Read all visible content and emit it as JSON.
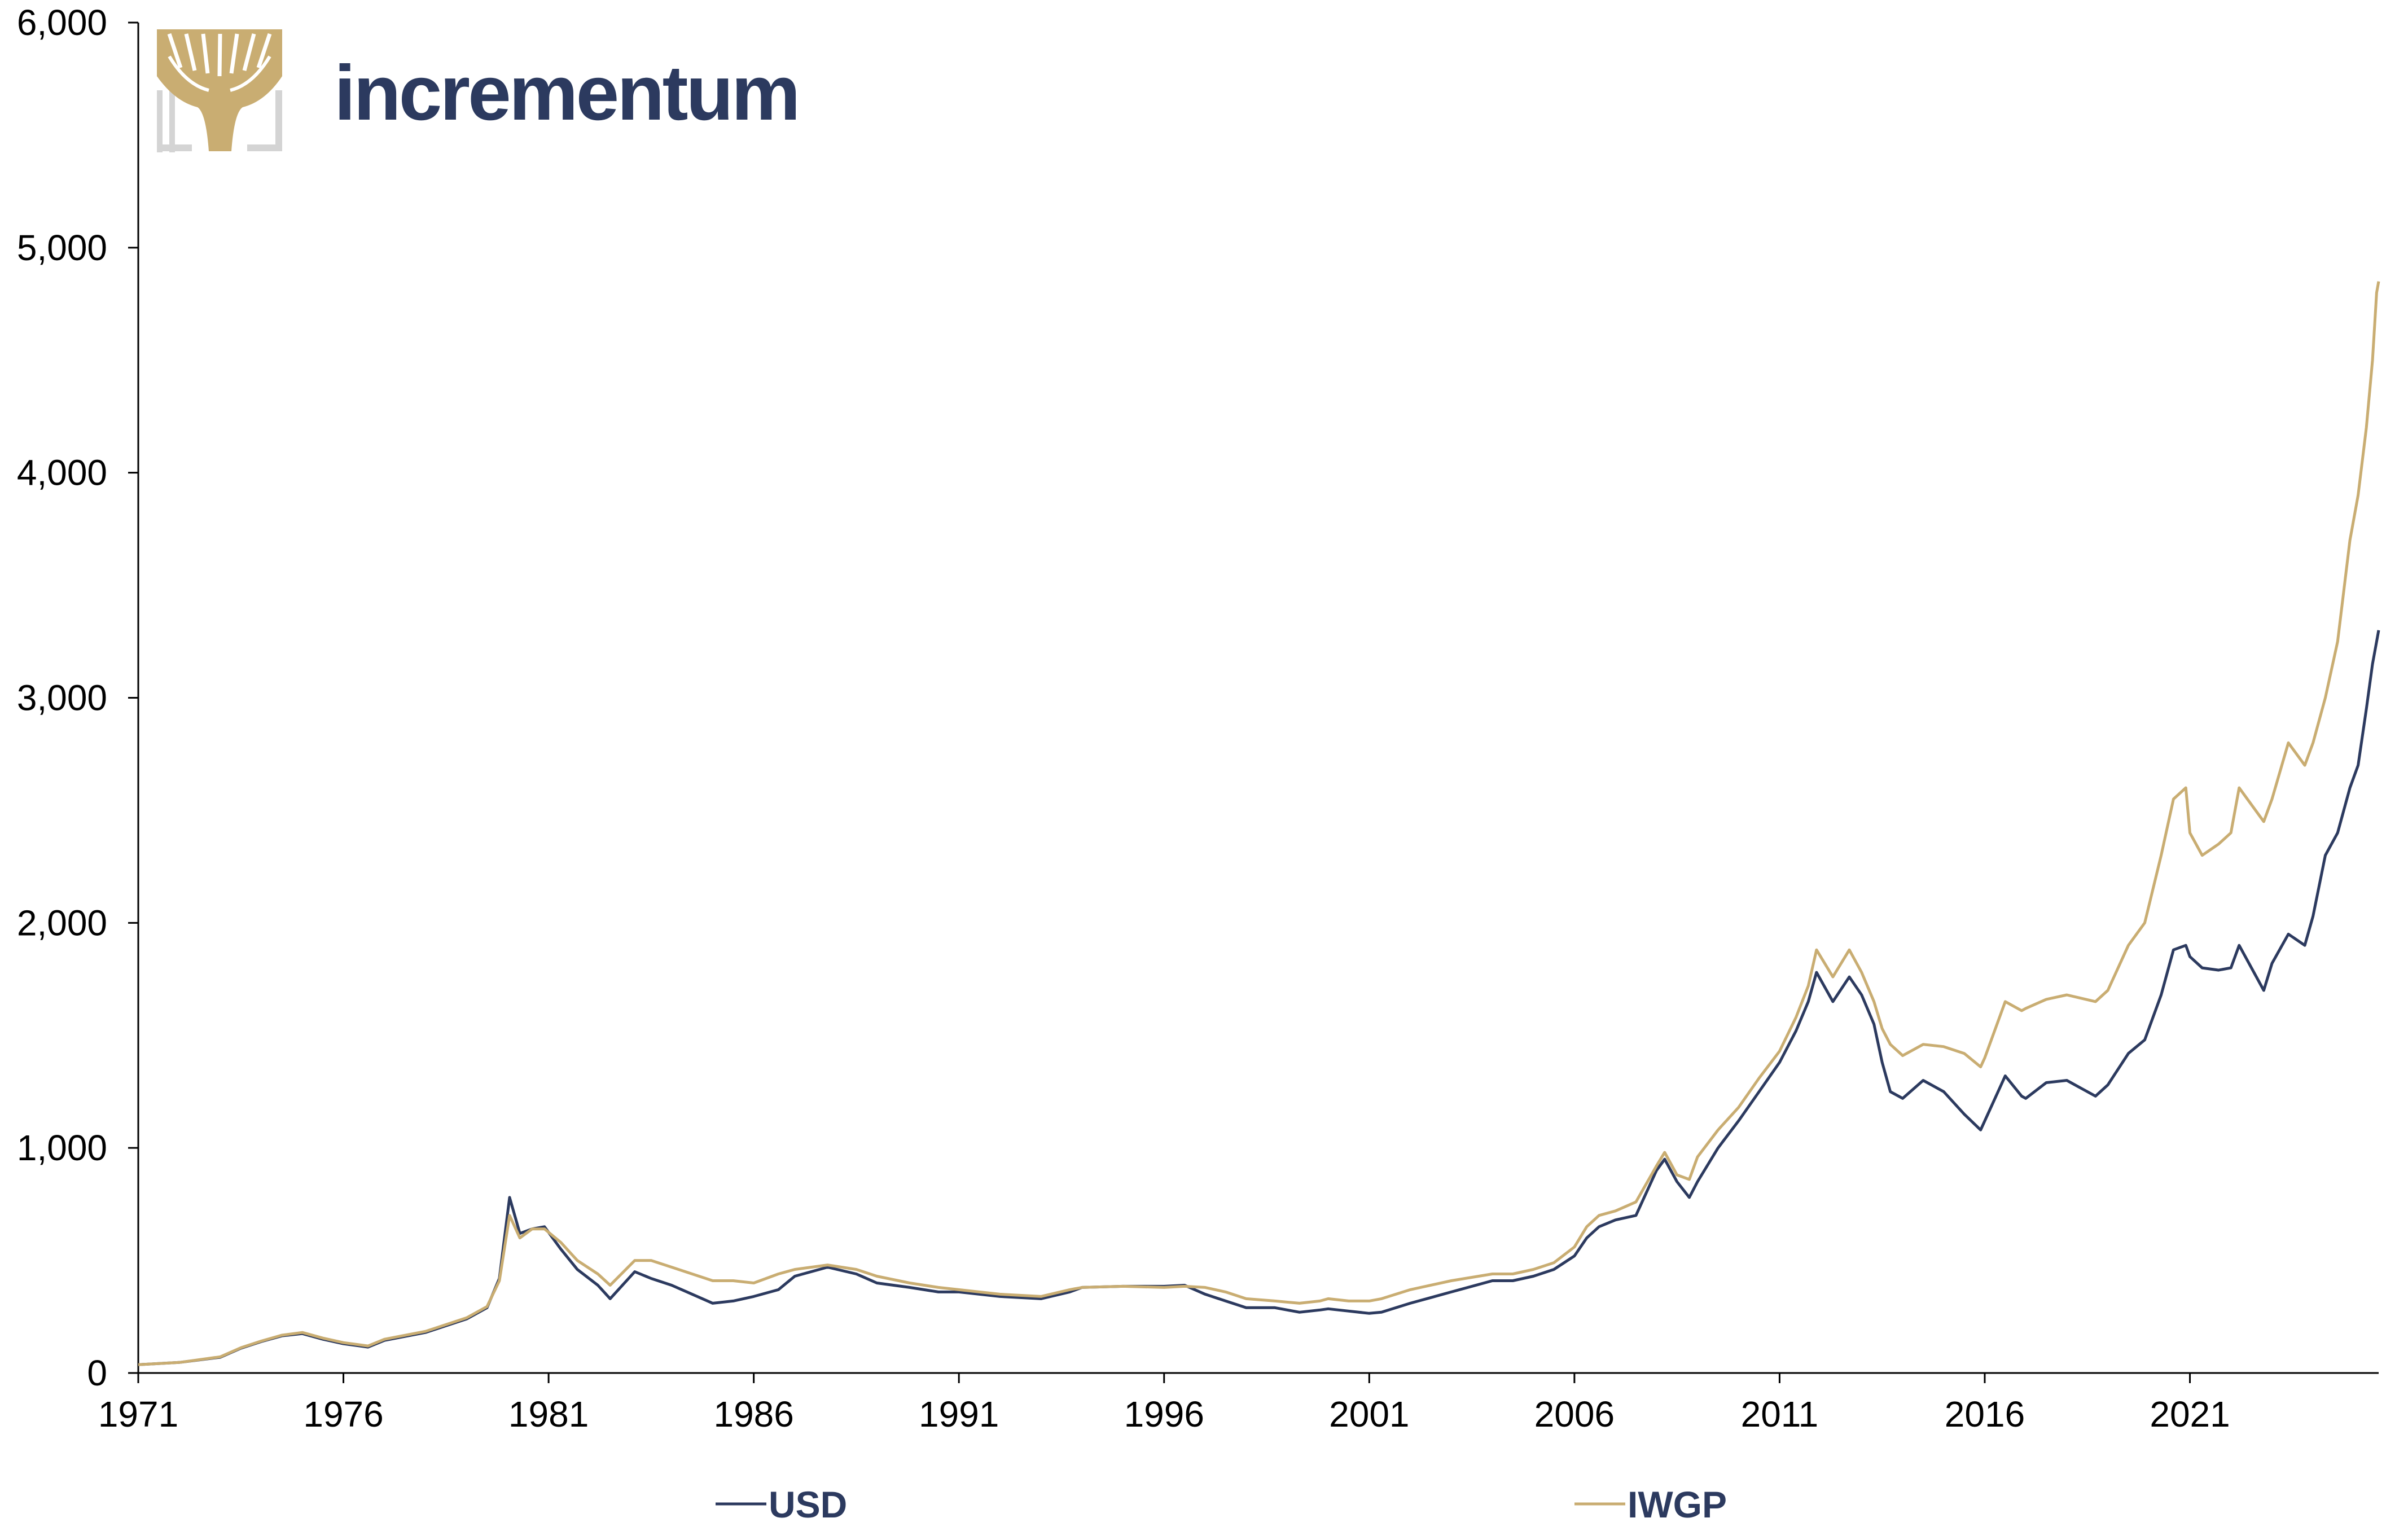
{
  "brand": {
    "name": "incrementum"
  },
  "colors": {
    "usd": "#2c3a5f",
    "iwgp": "#c9ad72",
    "axis": "#000000",
    "logo_gold": "#c9ad72",
    "logo_grey": "#d4d4d4"
  },
  "chart_data": {
    "type": "line",
    "title": "",
    "xlabel": "",
    "ylabel": "",
    "xlim": [
      1971,
      2025.6
    ],
    "ylim": [
      0,
      6000
    ],
    "grid": false,
    "legend_position": "bottom",
    "x_ticks": [
      "1971",
      "1976",
      "1981",
      "1986",
      "1991",
      "1996",
      "2001",
      "2006",
      "2011",
      "2016",
      "2021"
    ],
    "y_ticks": [
      "0",
      "1,000",
      "2,000",
      "3,000",
      "4,000",
      "5,000",
      "6,000"
    ],
    "x_tick_values": [
      1971,
      1976,
      1981,
      1986,
      1991,
      1996,
      2001,
      2006,
      2011,
      2016,
      2021
    ],
    "y_tick_values": [
      0,
      1000,
      2000,
      3000,
      4000,
      5000,
      6000
    ],
    "series": [
      {
        "name": "USD",
        "x": [
          1971.0,
          1972.0,
          1973.0,
          1973.5,
          1974.0,
          1974.5,
          1975.0,
          1975.5,
          1976.0,
          1976.6,
          1977.0,
          1978.0,
          1978.5,
          1979.0,
          1979.5,
          1979.8,
          1980.05,
          1980.3,
          1980.6,
          1980.9,
          1981.3,
          1981.7,
          1982.2,
          1982.5,
          1983.1,
          1983.5,
          1984.0,
          1985.0,
          1985.5,
          1986.0,
          1986.6,
          1987.0,
          1987.8,
          1988.5,
          1989.0,
          1989.8,
          1990.5,
          1991.0,
          1992.0,
          1993.0,
          1993.7,
          1994.0,
          1995.0,
          1996.0,
          1996.5,
          1997.0,
          1997.5,
          1998.0,
          1998.7,
          1999.3,
          1999.8,
          2000.0,
          2000.5,
          2001.0,
          2001.3,
          2002.0,
          2003.0,
          2004.0,
          2004.5,
          2005.0,
          2005.5,
          2006.0,
          2006.3,
          2006.6,
          2007.0,
          2007.5,
          2008.0,
          2008.2,
          2008.5,
          2008.8,
          2009.0,
          2009.5,
          2010.0,
          2010.5,
          2011.0,
          2011.4,
          2011.7,
          2011.9,
          2012.3,
          2012.7,
          2013.0,
          2013.3,
          2013.5,
          2013.7,
          2014.0,
          2014.5,
          2015.0,
          2015.5,
          2015.9,
          2016.0,
          2016.5,
          2016.9,
          2017.0,
          2017.5,
          2018.0,
          2018.7,
          2019.0,
          2019.5,
          2019.9,
          2020.3,
          2020.6,
          2020.9,
          2021.0,
          2021.3,
          2021.7,
          2022.0,
          2022.2,
          2022.8,
          2023.0,
          2023.4,
          2023.8,
          2024.0,
          2024.3,
          2024.6,
          2024.9,
          2025.1,
          2025.3,
          2025.45,
          2025.55,
          2025.6
        ],
        "values": [
          37,
          47,
          70,
          110,
          140,
          165,
          175,
          150,
          130,
          115,
          145,
          180,
          210,
          240,
          290,
          420,
          780,
          620,
          640,
          650,
          550,
          460,
          390,
          330,
          450,
          420,
          390,
          310,
          320,
          340,
          370,
          430,
          470,
          440,
          400,
          380,
          360,
          360,
          340,
          330,
          360,
          380,
          385,
          385,
          390,
          350,
          320,
          290,
          290,
          270,
          280,
          285,
          275,
          265,
          270,
          310,
          360,
          410,
          410,
          430,
          460,
          520,
          600,
          650,
          680,
          700,
          900,
          950,
          850,
          780,
          850,
          1000,
          1120,
          1250,
          1380,
          1520,
          1650,
          1780,
          1650,
          1760,
          1680,
          1550,
          1380,
          1250,
          1220,
          1300,
          1250,
          1150,
          1080,
          1120,
          1320,
          1230,
          1220,
          1290,
          1300,
          1230,
          1280,
          1420,
          1480,
          1680,
          1880,
          1900,
          1850,
          1800,
          1790,
          1800,
          1900,
          1700,
          1820,
          1950,
          1900,
          2030,
          2300,
          2400,
          2600,
          2700,
          2950,
          3150,
          3250,
          3300
        ]
      },
      {
        "name": "IWGP",
        "x": [
          1971.0,
          1972.0,
          1973.0,
          1973.5,
          1974.0,
          1974.5,
          1975.0,
          1975.5,
          1976.0,
          1976.6,
          1977.0,
          1978.0,
          1978.5,
          1979.0,
          1979.5,
          1979.8,
          1980.05,
          1980.3,
          1980.6,
          1980.9,
          1981.3,
          1981.7,
          1982.2,
          1982.5,
          1983.1,
          1983.5,
          1984.0,
          1985.0,
          1985.5,
          1986.0,
          1986.6,
          1987.0,
          1987.8,
          1988.5,
          1989.0,
          1989.8,
          1990.5,
          1991.0,
          1992.0,
          1993.0,
          1993.7,
          1994.0,
          1995.0,
          1996.0,
          1996.5,
          1997.0,
          1997.5,
          1998.0,
          1998.7,
          1999.3,
          1999.8,
          2000.0,
          2000.5,
          2001.0,
          2001.3,
          2002.0,
          2003.0,
          2004.0,
          2004.5,
          2005.0,
          2005.5,
          2006.0,
          2006.3,
          2006.6,
          2007.0,
          2007.5,
          2008.0,
          2008.2,
          2008.5,
          2008.8,
          2009.0,
          2009.5,
          2010.0,
          2010.5,
          2011.0,
          2011.4,
          2011.7,
          2011.9,
          2012.3,
          2012.7,
          2013.0,
          2013.3,
          2013.5,
          2013.7,
          2014.0,
          2014.5,
          2015.0,
          2015.5,
          2015.9,
          2016.0,
          2016.5,
          2016.9,
          2017.0,
          2017.5,
          2018.0,
          2018.7,
          2019.0,
          2019.5,
          2019.9,
          2020.3,
          2020.6,
          2020.9,
          2021.0,
          2021.3,
          2021.7,
          2022.0,
          2022.2,
          2022.8,
          2023.0,
          2023.4,
          2023.8,
          2024.0,
          2024.3,
          2024.6,
          2024.9,
          2025.1,
          2025.3,
          2025.45,
          2025.55,
          2025.6
        ],
        "values": [
          37,
          47,
          72,
          112,
          142,
          168,
          180,
          155,
          135,
          120,
          150,
          185,
          215,
          245,
          295,
          410,
          700,
          600,
          640,
          640,
          580,
          500,
          440,
          390,
          500,
          500,
          470,
          410,
          410,
          400,
          440,
          460,
          480,
          460,
          430,
          400,
          380,
          370,
          350,
          340,
          370,
          380,
          385,
          380,
          385,
          380,
          360,
          330,
          320,
          310,
          320,
          330,
          320,
          320,
          330,
          370,
          410,
          440,
          440,
          460,
          490,
          560,
          650,
          700,
          720,
          760,
          920,
          980,
          880,
          860,
          960,
          1080,
          1180,
          1310,
          1430,
          1580,
          1720,
          1880,
          1760,
          1880,
          1780,
          1650,
          1530,
          1460,
          1410,
          1460,
          1450,
          1420,
          1360,
          1400,
          1650,
          1610,
          1620,
          1660,
          1680,
          1650,
          1700,
          1900,
          2000,
          2300,
          2550,
          2600,
          2400,
          2300,
          2350,
          2400,
          2600,
          2450,
          2550,
          2800,
          2700,
          2800,
          3000,
          3250,
          3700,
          3900,
          4200,
          4500,
          4800,
          4850
        ]
      }
    ]
  },
  "legend": {
    "usd_label": "USD",
    "iwgp_label": "IWGP"
  }
}
